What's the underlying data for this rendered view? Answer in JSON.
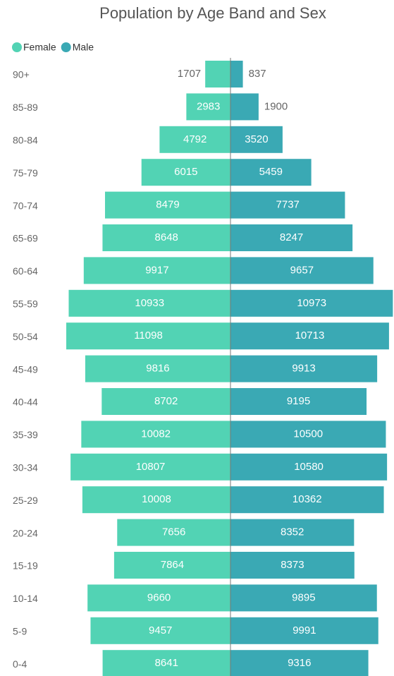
{
  "chart_data": {
    "type": "pyramid",
    "title": "Population by Age Band and Sex",
    "categories": [
      "90+",
      "85-89",
      "80-84",
      "75-79",
      "70-74",
      "65-69",
      "60-64",
      "55-59",
      "50-54",
      "45-49",
      "40-44",
      "35-39",
      "30-34",
      "25-29",
      "20-24",
      "15-19",
      "10-14",
      "5-9",
      "0-4"
    ],
    "series": [
      {
        "name": "Female",
        "color": "#52d3b4",
        "values": [
          1707,
          2983,
          4792,
          6015,
          8479,
          8648,
          9917,
          10933,
          11098,
          9816,
          8702,
          10082,
          10807,
          10008,
          7656,
          7864,
          9660,
          9457,
          8641
        ]
      },
      {
        "name": "Male",
        "color": "#3aa9b4",
        "values": [
          837,
          1900,
          3520,
          5459,
          7737,
          8247,
          9657,
          10973,
          10713,
          9913,
          9195,
          10500,
          10580,
          10362,
          8352,
          8373,
          9895,
          9991,
          9316
        ]
      }
    ]
  }
}
